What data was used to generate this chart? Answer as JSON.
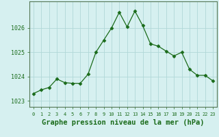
{
  "x": [
    0,
    1,
    2,
    3,
    4,
    5,
    6,
    7,
    8,
    9,
    10,
    11,
    12,
    13,
    14,
    15,
    16,
    17,
    18,
    19,
    20,
    21,
    22,
    23
  ],
  "y": [
    1023.3,
    1023.45,
    1023.55,
    1023.9,
    1023.75,
    1023.72,
    1023.72,
    1024.1,
    1025.0,
    1025.5,
    1026.0,
    1026.65,
    1026.05,
    1026.7,
    1026.1,
    1025.35,
    1025.25,
    1025.05,
    1024.85,
    1025.0,
    1024.3,
    1024.05,
    1024.05,
    1023.82
  ],
  "line_color": "#1a6b1a",
  "marker": "D",
  "marker_size": 2.5,
  "bg_color": "#d6f0f0",
  "grid_color": "#b0d8d8",
  "xlabel": "Graphe pression niveau de la mer (hPa)",
  "xlabel_fontsize": 7.5,
  "ylabel_ticks": [
    1023,
    1024,
    1025,
    1026
  ],
  "xlim": [
    -0.5,
    23.5
  ],
  "ylim": [
    1022.75,
    1027.1
  ],
  "title": ""
}
